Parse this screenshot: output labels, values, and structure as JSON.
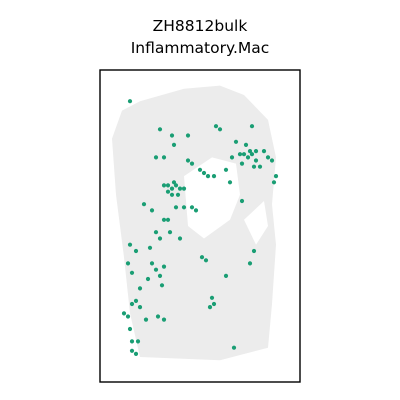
{
  "chart_data": {
    "type": "scatter",
    "title": [
      "ZH8812bulk",
      "Inflammatory.Mac"
    ],
    "xlabel": "",
    "ylabel": "",
    "axes_visible": false,
    "frame": true,
    "grid": false,
    "legend": "none",
    "xlim": [
      0,
      100
    ],
    "ylim": [
      0,
      100
    ],
    "colors": {
      "tissue": "#ececec",
      "highlight": "#1a9e74",
      "frame": "#000000"
    },
    "tissue_outline": [
      [
        20,
        90
      ],
      [
        42,
        94
      ],
      [
        60,
        95
      ],
      [
        72,
        92
      ],
      [
        84,
        84
      ],
      [
        88,
        72
      ],
      [
        86,
        57
      ],
      [
        88,
        44
      ],
      [
        86,
        25
      ],
      [
        84,
        11
      ],
      [
        60,
        7
      ],
      [
        20,
        8
      ],
      [
        15,
        22
      ],
      [
        12,
        40
      ],
      [
        8,
        60
      ],
      [
        6,
        78
      ],
      [
        11,
        87
      ]
    ],
    "tissue_holes": [
      [
        [
          42,
          66
        ],
        [
          56,
          72
        ],
        [
          68,
          70
        ],
        [
          70,
          60
        ],
        [
          65,
          52
        ],
        [
          52,
          46
        ],
        [
          44,
          50
        ]
      ],
      [
        [
          72,
          52
        ],
        [
          82,
          58
        ],
        [
          84,
          50
        ],
        [
          78,
          44
        ]
      ]
    ],
    "series": [
      {
        "values": [
          [
            15,
            90
          ],
          [
            30,
            81
          ],
          [
            36,
            79
          ],
          [
            37,
            76
          ],
          [
            44,
            79
          ],
          [
            58,
            82
          ],
          [
            60,
            81
          ],
          [
            76,
            82
          ],
          [
            68,
            77
          ],
          [
            73,
            76
          ],
          [
            75,
            74
          ],
          [
            78,
            74
          ],
          [
            82,
            74
          ],
          [
            70,
            73
          ],
          [
            72,
            73
          ],
          [
            74,
            72
          ],
          [
            76,
            73
          ],
          [
            78,
            71
          ],
          [
            66,
            72
          ],
          [
            71,
            70
          ],
          [
            77,
            69
          ],
          [
            80,
            69
          ],
          [
            84,
            72
          ],
          [
            86,
            71
          ],
          [
            88,
            66
          ],
          [
            87,
            64
          ],
          [
            28,
            72
          ],
          [
            32,
            72
          ],
          [
            44,
            71
          ],
          [
            46,
            70
          ],
          [
            50,
            68
          ],
          [
            52,
            67
          ],
          [
            54,
            66
          ],
          [
            57,
            66
          ],
          [
            63,
            68
          ],
          [
            65,
            64
          ],
          [
            32,
            63
          ],
          [
            34,
            63
          ],
          [
            36,
            62
          ],
          [
            38,
            63
          ],
          [
            40,
            62
          ],
          [
            34,
            61
          ],
          [
            36,
            60
          ],
          [
            37,
            64
          ],
          [
            42,
            62
          ],
          [
            39,
            60
          ],
          [
            71,
            58
          ],
          [
            38,
            56
          ],
          [
            42,
            56
          ],
          [
            46,
            56
          ],
          [
            48,
            55
          ],
          [
            22,
            57
          ],
          [
            26,
            55
          ],
          [
            32,
            52
          ],
          [
            34,
            52
          ],
          [
            35,
            48
          ],
          [
            40,
            46
          ],
          [
            28,
            48
          ],
          [
            30,
            46
          ],
          [
            25,
            43
          ],
          [
            15,
            44
          ],
          [
            18,
            42
          ],
          [
            14,
            38
          ],
          [
            16,
            35
          ],
          [
            26,
            38
          ],
          [
            28,
            36
          ],
          [
            30,
            34
          ],
          [
            31,
            31
          ],
          [
            32,
            37
          ],
          [
            24,
            33
          ],
          [
            20,
            30
          ],
          [
            18,
            26
          ],
          [
            16,
            25
          ],
          [
            20,
            24
          ],
          [
            14,
            21
          ],
          [
            12,
            22
          ],
          [
            23,
            20
          ],
          [
            15,
            17
          ],
          [
            29,
            21
          ],
          [
            32,
            20
          ],
          [
            16,
            13
          ],
          [
            19,
            13
          ],
          [
            16,
            10
          ],
          [
            18,
            9
          ],
          [
            56,
            27
          ],
          [
            57,
            25
          ],
          [
            55,
            24
          ],
          [
            51,
            40
          ],
          [
            53,
            39
          ],
          [
            63,
            34
          ],
          [
            77,
            42
          ],
          [
            75,
            38
          ],
          [
            67,
            11
          ]
        ]
      }
    ]
  }
}
